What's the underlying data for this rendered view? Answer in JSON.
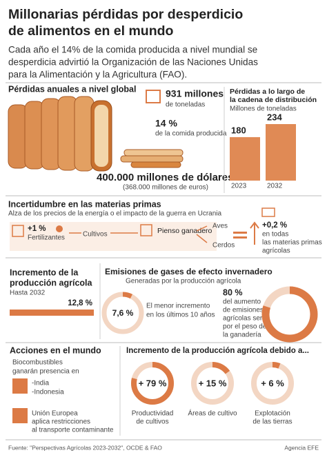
{
  "header": {
    "title": [
      "Millonarias pérdidas por desperdicio",
      "de alimentos en el mundo"
    ],
    "subtitle": [
      "Cada año el 14% de la comida producida a nivel mundial se",
      "desperdicia advirtió la Organización de las Naciones Unidas",
      "para la Alimentación y la Agricultura (FAO)."
    ]
  },
  "global_losses": {
    "title": "Pérdidas anuales a nivel global",
    "tonnes": "931 millones",
    "tonnes_unit": "de toneladas",
    "share": "14 %",
    "share_note": "de la comida producida",
    "dollars": "400.000 millones de dólares",
    "euros": "(368.000 millones de euros)"
  },
  "distribution": {
    "title": [
      "Pérdidas a lo largo de",
      "la cadena de distribución"
    ],
    "unit": "Millones de toneladas",
    "categories": [
      "2023",
      "2032"
    ],
    "values": [
      180,
      234
    ]
  },
  "raw_materials": {
    "title": "Incertidumbre en las materias primas",
    "subtitle": "Alza de los precios de la energía o el impacto de la guerra en Ucrania",
    "fertilizer_change": "+1 %",
    "fertilizer": "Fertilizantes",
    "crops": "Cultivos",
    "feed": "Pienso ganadero",
    "poultry": "Aves",
    "pigs": "Cerdos",
    "total_change": "+0,2 %",
    "total_note": [
      "en todas",
      "las materias primas",
      "agrícolas"
    ]
  },
  "production": {
    "title": [
      "Incremento de la",
      "producción agrícola"
    ],
    "period": "Hasta 2032",
    "increase": "12,8 %"
  },
  "emissions": {
    "title": "Emisiones de gases de efecto invernadero",
    "subtitle": "Generadas por la producción agrícola",
    "min_increase": {
      "value": 7.6,
      "label": "7,6 %"
    },
    "min_note": [
      "El menor incremento",
      "en los últimos 10 años"
    ],
    "livestock": {
      "value": 80,
      "label": "80 %"
    },
    "livestock_note": [
      "del aumento",
      "de emisiones",
      "agrícolas será",
      "por el peso de",
      "la ganadería"
    ]
  },
  "actions": {
    "title": "Acciones en el mundo",
    "biofuels": [
      "Biocombustibles",
      "ganarán presencia en"
    ],
    "countries": [
      "-India",
      "-Indonesia"
    ],
    "eu": [
      "Unión Europea",
      "aplica restricciones",
      "al transporte contaminante"
    ]
  },
  "drivers": {
    "title": "Incremento de la producción agrícola debido a...",
    "items": [
      {
        "value": 79,
        "label": "+ 79 %",
        "caption": [
          "Productividad",
          "de cultivos"
        ]
      },
      {
        "value": 15,
        "label": "+ 15 %",
        "caption": [
          "Áreas de cultivo"
        ]
      },
      {
        "value": 6,
        "label": "+ 6 %",
        "caption": [
          "Explotación",
          "de las tierras"
        ]
      }
    ]
  },
  "footer": {
    "source": "Fuente: \"Perspectivas Agrícolas 2023-2032\", OCDE & FAO",
    "agency": "Agencia EFE"
  }
}
